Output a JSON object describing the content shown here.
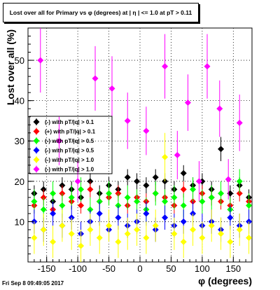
{
  "chart_data": {
    "type": "scatter",
    "title": "Lost over all for Primary vs φ (degrees) at | η | <= 1.0 at pT > 0.11",
    "xlabel": "φ (degrees)",
    "ylabel": "Lost over all (%)",
    "xlim": [
      -180,
      180
    ],
    "ylim": [
      0,
      58
    ],
    "x_ticks": [
      -150,
      -100,
      -50,
      0,
      50,
      100,
      150
    ],
    "y_ticks": [
      10,
      20,
      30,
      40,
      50
    ],
    "grid": true,
    "legend_position": "left-middle",
    "series": [
      {
        "name": "(-) with pT/|q| > 0.1",
        "color": "#000000",
        "x": [
          -170,
          -155,
          -140,
          -125,
          -110,
          -95,
          -80,
          -65,
          -50,
          -35,
          -20,
          -5,
          10,
          25,
          40,
          55,
          70,
          85,
          100,
          115,
          130,
          145,
          160,
          175
        ],
        "y": [
          17,
          18,
          15,
          19,
          18,
          16,
          20,
          17,
          19,
          18,
          21,
          20,
          19,
          21,
          20,
          18,
          22,
          19,
          20,
          18,
          28,
          17,
          19,
          16
        ],
        "err": [
          2,
          2,
          2,
          2,
          2,
          2,
          2,
          2,
          2,
          2,
          2,
          2,
          2,
          2,
          2,
          2,
          2,
          2,
          2,
          2,
          3,
          2,
          2,
          2
        ]
      },
      {
        "name": "(+) with pT/|q| > 0.1",
        "color": "#ff0000",
        "x": [
          -170,
          -155,
          -140,
          -125,
          -110,
          -95,
          -80,
          -65,
          -50,
          -35,
          -20,
          -5,
          10,
          25,
          40,
          55,
          70,
          85,
          100,
          115,
          130,
          145,
          160,
          175
        ],
        "y": [
          14,
          16,
          13,
          17,
          15,
          14,
          18,
          15,
          16,
          17,
          14,
          16,
          15,
          17,
          16,
          14,
          18,
          15,
          17,
          16,
          15,
          14,
          17,
          15
        ],
        "err": [
          2,
          2,
          2,
          2,
          2,
          2,
          2,
          2,
          2,
          2,
          2,
          2,
          2,
          2,
          2,
          2,
          2,
          2,
          2,
          2,
          2,
          2,
          2,
          2
        ]
      },
      {
        "name": "(-) with pT/|q| > 0.5",
        "color": "#00ff00",
        "x": [
          -170,
          -155,
          -140,
          -125,
          -110,
          -95,
          -80,
          -65,
          -50,
          -35,
          -20,
          -5,
          10,
          25,
          40,
          55,
          70,
          85,
          100,
          115,
          130,
          145,
          160,
          175
        ],
        "y": [
          15,
          13,
          17,
          14,
          16,
          18,
          13,
          15,
          17,
          14,
          16,
          15,
          13,
          17,
          15,
          16,
          14,
          18,
          15,
          16,
          17,
          13,
          20,
          14
        ],
        "err": [
          3,
          3,
          3,
          3,
          3,
          3,
          3,
          3,
          3,
          3,
          3,
          3,
          3,
          3,
          3,
          3,
          3,
          3,
          3,
          3,
          3,
          3,
          3,
          3
        ]
      },
      {
        "name": "(-) with pT/|q| > 0.5",
        "color": "#0000ff",
        "x": [
          -170,
          -155,
          -140,
          -125,
          -110,
          -95,
          -80,
          -65,
          -50,
          -35,
          -20,
          -5,
          10,
          25,
          40,
          55,
          70,
          85,
          100,
          115,
          130,
          145,
          160,
          175
        ],
        "y": [
          10,
          8,
          12,
          9,
          11,
          7,
          10,
          12,
          8,
          11,
          9,
          10,
          12,
          8,
          11,
          9,
          10,
          12,
          9,
          10,
          8,
          11,
          9,
          10
        ],
        "err": [
          3,
          3,
          3,
          3,
          3,
          3,
          3,
          3,
          3,
          3,
          3,
          3,
          3,
          3,
          3,
          3,
          3,
          3,
          3,
          3,
          3,
          3,
          3,
          3
        ]
      },
      {
        "name": "(-) with pT/|q| > 1.0",
        "color": "#ffff00",
        "x": [
          -170,
          -155,
          -140,
          -125,
          -110,
          -95,
          -80,
          -65,
          -50,
          -35,
          -20,
          -5,
          10,
          25,
          40,
          55,
          70,
          85,
          100,
          115,
          130,
          145,
          160,
          175
        ],
        "y": [
          6,
          8,
          5,
          9,
          7,
          4,
          8,
          6,
          9,
          5,
          7,
          8,
          6,
          9,
          26,
          7,
          5,
          8,
          6,
          9,
          7,
          5,
          8,
          6
        ],
        "err": [
          4,
          4,
          4,
          4,
          4,
          4,
          4,
          4,
          4,
          4,
          4,
          4,
          4,
          4,
          6,
          4,
          4,
          4,
          4,
          4,
          4,
          4,
          4,
          4
        ]
      },
      {
        "name": "(-) with pT/|q| > 1.0",
        "color": "#ff00ff",
        "x": [
          -160,
          -130,
          -100,
          -72,
          -45,
          -20,
          10,
          40,
          60,
          77,
          95,
          108,
          128,
          142,
          160
        ],
        "y": [
          50,
          30,
          20,
          45.5,
          43,
          35,
          32.5,
          48.5,
          26.5,
          39.5,
          20,
          48.5,
          38,
          20.5,
          34.5
        ],
        "err": [
          8,
          6,
          5,
          8,
          8,
          7,
          6,
          8,
          6,
          7,
          5,
          8,
          7,
          5,
          7
        ]
      }
    ]
  },
  "footer": {
    "timestamp": "Fri Sep  8 09:49:05 2017"
  }
}
